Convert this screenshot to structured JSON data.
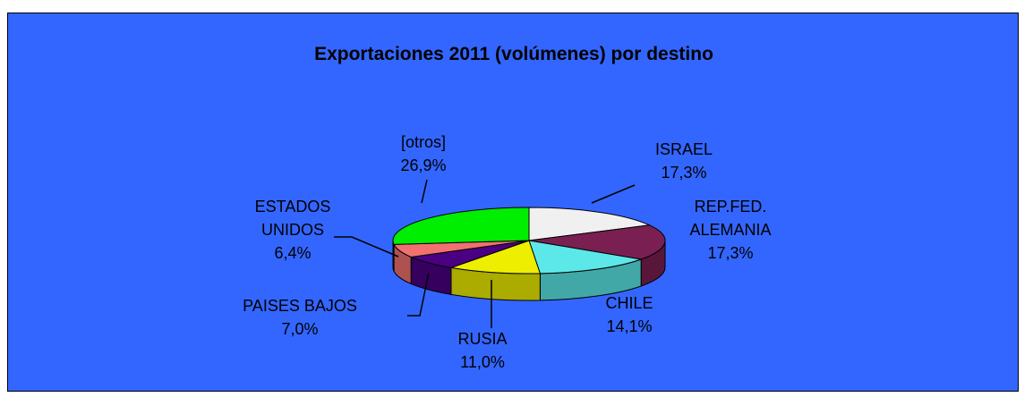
{
  "chart_data": {
    "type": "pie",
    "title": "Exportaciones 2011 (volúmenes) por destino",
    "slices": [
      {
        "label_lines": [
          "ISRAEL"
        ],
        "value_label": "17,3%",
        "value": 17.3,
        "color": "#f0f0f0"
      },
      {
        "label_lines": [
          "REP.FED.",
          "ALEMANIA"
        ],
        "value_label": "17,3%",
        "value": 17.3,
        "color": "#7a1f52"
      },
      {
        "label_lines": [
          "CHILE"
        ],
        "value_label": "14,1%",
        "value": 14.1,
        "color": "#5ce8e8"
      },
      {
        "label_lines": [
          "RUSIA"
        ],
        "value_label": "11,0%",
        "value": 11.0,
        "color": "#eeee00"
      },
      {
        "label_lines": [
          "PAISES BAJOS"
        ],
        "value_label": "7,0%",
        "value": 7.0,
        "color": "#4b0082"
      },
      {
        "label_lines": [
          "ESTADOS",
          "UNIDOS"
        ],
        "value_label": "6,4%",
        "value": 6.4,
        "color": "#f27070"
      },
      {
        "label_lines": [
          "[otros]"
        ],
        "value_label": "26,9%",
        "value": 26.9,
        "color": "#00ee00"
      }
    ],
    "background_color": "#3366ff",
    "three_d": true,
    "legend": "none"
  }
}
